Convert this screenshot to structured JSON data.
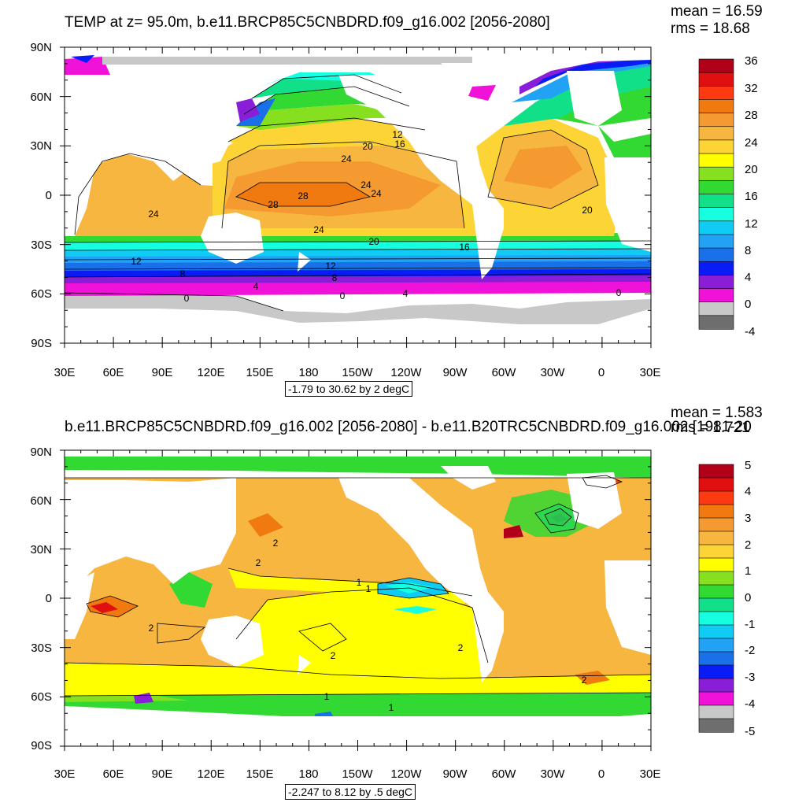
{
  "panels": [
    {
      "title": "TEMP at z=  95.0m, b.e11.BRCP85C5CNBDRD.f09_g16.002 [2056-2080]",
      "mean": "mean = 16.59",
      "rms": "rms = 18.68",
      "range": "-1.79 to 30.62 by 2 degC",
      "lat_ticks": [
        "90N",
        "60N",
        "30N",
        "0",
        "30S",
        "60S",
        "90S"
      ],
      "lon_ticks": [
        "30E",
        "60E",
        "90E",
        "120E",
        "150E",
        "180",
        "150W",
        "120W",
        "90W",
        "60W",
        "30W",
        "0",
        "30E"
      ],
      "colorbar": {
        "labels": [
          "36",
          "32",
          "28",
          "24",
          "20",
          "16",
          "12",
          "8",
          "4",
          "0",
          "-4"
        ],
        "colors": [
          "#b0001a",
          "#e01010",
          "#ff3a10",
          "#f07a10",
          "#f59a30",
          "#f7b640",
          "#fdd435",
          "#ffff00",
          "#86e020",
          "#33d933",
          "#11e089",
          "#15ffe0",
          "#10ccf5",
          "#22a2f5",
          "#1a70e8",
          "#0a1cf5",
          "#8a1ed8",
          "#f012d8",
          "#c8c8c8",
          "#6e6e6e"
        ]
      },
      "contour_labels": [
        "24",
        "28",
        "28",
        "24",
        "24",
        "24",
        "24",
        "20",
        "20",
        "20",
        "16",
        "16",
        "12",
        "12",
        "12",
        "8",
        "8",
        "4",
        "4",
        "0",
        "0",
        "0"
      ]
    },
    {
      "title": "b.e11.BRCP85C5CNBDRD.f09_g16.002 [2056-2080] - b.e11.B20TRC5CNBDRD.f09_g16.002 [1981-20",
      "mean": "mean = 1.583",
      "rms": "rms = 1.721",
      "range": "-2.247 to 8.12 by .5 degC",
      "lat_ticks": [
        "90N",
        "60N",
        "30N",
        "0",
        "30S",
        "60S",
        "90S"
      ],
      "lon_ticks": [
        "30E",
        "60E",
        "90E",
        "120E",
        "150E",
        "180",
        "150W",
        "120W",
        "90W",
        "60W",
        "30W",
        "0",
        "30E"
      ],
      "colorbar": {
        "labels": [
          "5",
          "4",
          "3",
          "2",
          "1",
          "0",
          "-1",
          "-2",
          "-3",
          "-4",
          "-5"
        ],
        "colors": [
          "#b0001a",
          "#e01010",
          "#ff3a10",
          "#f07a10",
          "#f59a30",
          "#f7b640",
          "#fdd435",
          "#ffff00",
          "#86e020",
          "#33d933",
          "#11e089",
          "#15ffe0",
          "#10ccf5",
          "#22a2f5",
          "#1a70e8",
          "#0a1cf5",
          "#8a1ed8",
          "#f012d8",
          "#c8c8c8",
          "#6e6e6e"
        ]
      },
      "contour_labels": [
        "2",
        "2",
        "2",
        "2",
        "2",
        "1",
        "1",
        "1",
        "1",
        "2"
      ]
    }
  ]
}
